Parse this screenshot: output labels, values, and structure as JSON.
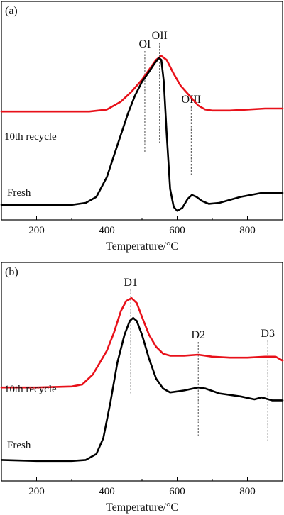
{
  "chart_data": [
    {
      "type": "line",
      "panel_label": "(a)",
      "xlabel": "Temperature/°C",
      "ylabel": "",
      "xlim": [
        100,
        900
      ],
      "ylim": [
        0,
        1
      ],
      "xticks": [
        200,
        400,
        600,
        800
      ],
      "yaxis_values_shown": false,
      "grid": false,
      "series_labels_placement": "left, above each curve",
      "series": [
        {
          "name": "10th recycle",
          "color": "#e8111a",
          "x": [
            100,
            200,
            300,
            350,
            400,
            440,
            470,
            500,
            520,
            540,
            555,
            570,
            590,
            610,
            640,
            660,
            680,
            700,
            750,
            800,
            850,
            900
          ],
          "y": [
            0.51,
            0.51,
            0.51,
            0.51,
            0.52,
            0.56,
            0.61,
            0.67,
            0.72,
            0.77,
            0.79,
            0.77,
            0.7,
            0.64,
            0.58,
            0.54,
            0.52,
            0.515,
            0.515,
            0.52,
            0.525,
            0.525
          ]
        },
        {
          "name": "Fresh",
          "color": "#000000",
          "x": [
            100,
            200,
            250,
            300,
            340,
            370,
            400,
            430,
            460,
            480,
            500,
            520,
            535,
            548,
            555,
            562,
            570,
            580,
            590,
            600,
            615,
            630,
            642,
            655,
            670,
            690,
            720,
            780,
            840,
            900
          ],
          "y": [
            0.04,
            0.04,
            0.04,
            0.04,
            0.05,
            0.08,
            0.18,
            0.34,
            0.5,
            0.59,
            0.66,
            0.71,
            0.75,
            0.78,
            0.77,
            0.66,
            0.4,
            0.12,
            0.03,
            0.01,
            0.025,
            0.07,
            0.09,
            0.08,
            0.06,
            0.045,
            0.05,
            0.08,
            0.1,
            0.1
          ]
        }
      ],
      "annotations": [
        {
          "text": "OI",
          "x": 508
        },
        {
          "text": "OII",
          "x": 550
        },
        {
          "text": "OIII",
          "x": 640
        }
      ]
    },
    {
      "type": "line",
      "panel_label": "(b)",
      "xlabel": "Temperature/°C",
      "ylabel": "",
      "xlim": [
        100,
        900
      ],
      "ylim": [
        0,
        1
      ],
      "xticks": [
        200,
        400,
        600,
        800
      ],
      "yaxis_values_shown": false,
      "grid": false,
      "series_labels_placement": "left, above each curve",
      "series": [
        {
          "name": "10th recycle",
          "color": "#e8111a",
          "x": [
            100,
            200,
            300,
            330,
            360,
            400,
            420,
            440,
            455,
            470,
            485,
            500,
            520,
            540,
            560,
            580,
            620,
            660,
            700,
            750,
            800,
            850,
            880,
            900
          ],
          "y": [
            0.435,
            0.435,
            0.44,
            0.45,
            0.5,
            0.62,
            0.71,
            0.82,
            0.87,
            0.885,
            0.86,
            0.79,
            0.7,
            0.64,
            0.605,
            0.595,
            0.595,
            0.6,
            0.59,
            0.585,
            0.585,
            0.59,
            0.59,
            0.57
          ]
        },
        {
          "name": "Fresh",
          "color": "#000000",
          "x": [
            100,
            200,
            300,
            340,
            370,
            390,
            410,
            430,
            450,
            465,
            475,
            485,
            500,
            520,
            540,
            560,
            580,
            620,
            660,
            680,
            720,
            780,
            820,
            840,
            850,
            870,
            900
          ],
          "y": [
            0.07,
            0.065,
            0.065,
            0.07,
            0.1,
            0.18,
            0.36,
            0.56,
            0.7,
            0.77,
            0.785,
            0.77,
            0.7,
            0.58,
            0.48,
            0.43,
            0.41,
            0.42,
            0.435,
            0.43,
            0.405,
            0.39,
            0.375,
            0.385,
            0.38,
            0.37,
            0.37
          ]
        }
      ],
      "annotations": [
        {
          "text": "D1",
          "x": 468
        },
        {
          "text": "D2",
          "x": 660
        },
        {
          "text": "D3",
          "x": 858
        }
      ]
    }
  ]
}
